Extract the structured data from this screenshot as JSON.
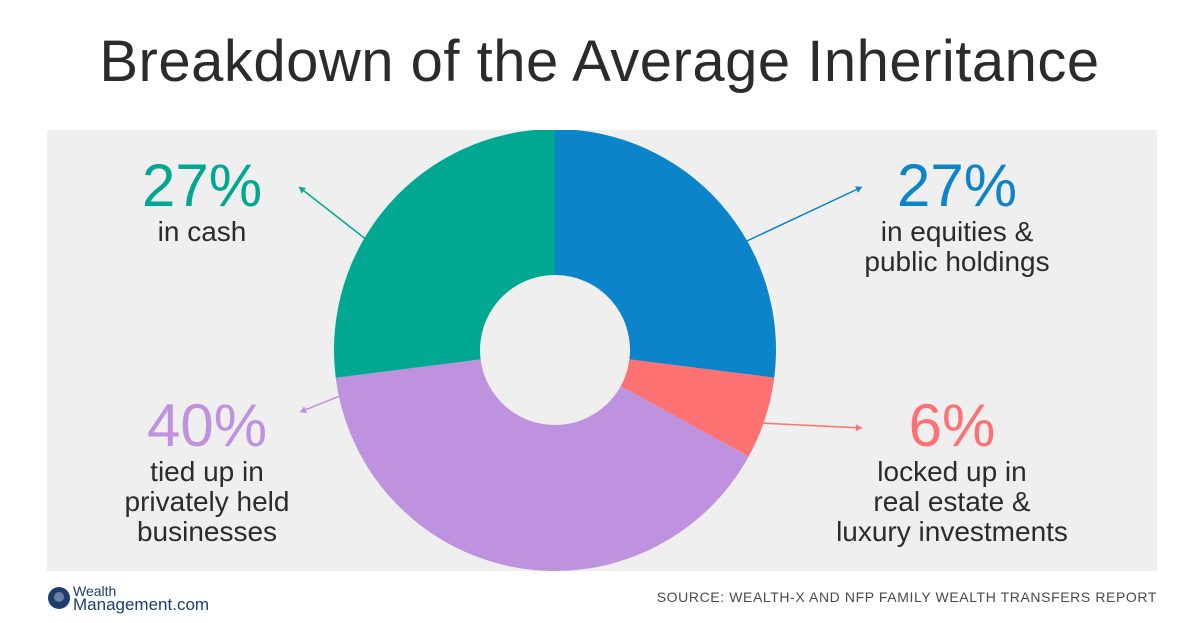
{
  "title": "Breakdown of the Average Inheritance",
  "chart_data": {
    "type": "pie",
    "slices": [
      {
        "label": "in equities & public holdings",
        "pct_text": "27%",
        "value": 27,
        "color": "#0b84c9"
      },
      {
        "label": "locked up in real estate & luxury investments",
        "pct_text": "6%",
        "value": 6,
        "color": "#fe7173"
      },
      {
        "label": "tied up in privately held businesses",
        "pct_text": "40%",
        "value": 40,
        "color": "#be92de"
      },
      {
        "label": "in cash",
        "pct_text": "27%",
        "value": 27,
        "color": "#00a892"
      }
    ]
  },
  "labels": {
    "cash": {
      "pct": "27%",
      "lines": [
        "in cash"
      ]
    },
    "equities": {
      "pct": "27%",
      "lines": [
        "in equities &",
        "public holdings"
      ]
    },
    "private": {
      "pct": "40%",
      "lines": [
        "tied up in",
        "privately held",
        "businesses"
      ]
    },
    "realestate": {
      "pct": "6%",
      "lines": [
        "locked up in",
        "real estate &",
        "luxury investments"
      ]
    }
  },
  "colors": {
    "equities": "#0b84c9",
    "realestate": "#fe7173",
    "private": "#be92de",
    "cash": "#00a892",
    "panel": "#efefef"
  },
  "footer": {
    "logo_line1": "Wealth",
    "logo_line2": "Management.com",
    "source": "SOURCE: WEALTH-X AND NFP FAMILY WEALTH TRANSFERS REPORT"
  }
}
